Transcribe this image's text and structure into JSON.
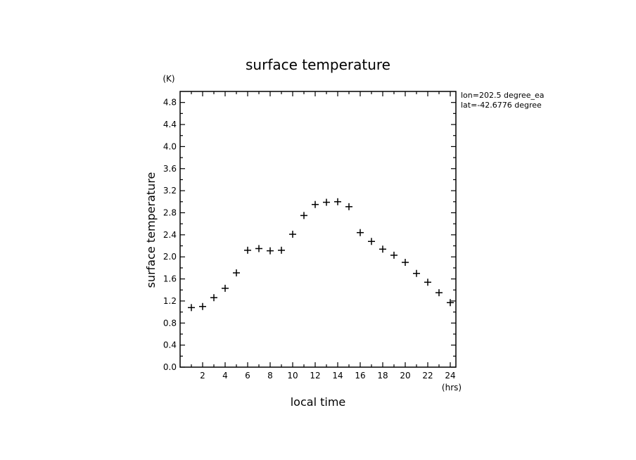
{
  "chart_data": {
    "type": "scatter",
    "title": "surface temperature",
    "xlabel": "local time",
    "ylabel": "surface temperature",
    "x_unit": "(hrs)",
    "y_unit": "(K)",
    "xlim": [
      0,
      24.5
    ],
    "ylim": [
      0,
      5.0
    ],
    "xticks": [
      2,
      4,
      6,
      8,
      10,
      12,
      14,
      16,
      18,
      20,
      22,
      24
    ],
    "yticks": [
      0.0,
      0.4,
      0.8,
      1.2,
      1.6,
      2.0,
      2.4,
      2.8,
      3.2,
      3.6,
      4.0,
      4.4,
      4.8
    ],
    "ytick_labels": [
      "0.0",
      "0.4",
      "0.8",
      "1.2",
      "1.6",
      "2.0",
      "2.4",
      "2.8",
      "3.2",
      "3.6",
      "4.0",
      "4.4",
      "4.8"
    ],
    "annotations": [
      "lon=202.5 degree_ea",
      "lat=-42.6776 degree"
    ],
    "grid": false,
    "marker": "+",
    "x": [
      1,
      2,
      3,
      4,
      5,
      6,
      7,
      8,
      9,
      10,
      11,
      12,
      13,
      14,
      15,
      16,
      17,
      18,
      19,
      20,
      21,
      22,
      23,
      24
    ],
    "y": [
      1.08,
      1.1,
      1.26,
      1.43,
      1.71,
      2.12,
      2.15,
      2.11,
      2.12,
      2.41,
      2.75,
      2.95,
      2.99,
      3.0,
      2.91,
      2.44,
      2.28,
      2.14,
      2.03,
      1.9,
      1.7,
      1.54,
      1.35,
      1.17
    ]
  }
}
